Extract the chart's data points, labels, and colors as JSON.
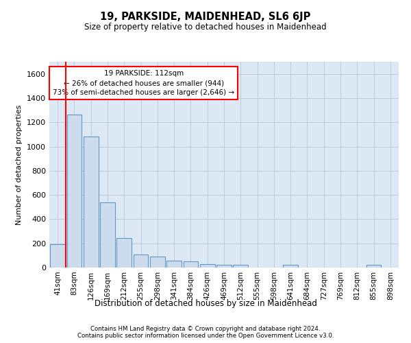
{
  "title": "19, PARKSIDE, MAIDENHEAD, SL6 6JP",
  "subtitle": "Size of property relative to detached houses in Maidenhead",
  "xlabel": "Distribution of detached houses by size in Maidenhead",
  "ylabel": "Number of detached properties",
  "footer_line1": "Contains HM Land Registry data © Crown copyright and database right 2024.",
  "footer_line2": "Contains public sector information licensed under the Open Government Licence v3.0.",
  "annotation_line1": "19 PARKSIDE: 112sqm",
  "annotation_line2": "← 26% of detached houses are smaller (944)",
  "annotation_line3": "73% of semi-detached houses are larger (2,646) →",
  "bar_labels": [
    "41sqm",
    "83sqm",
    "126sqm",
    "169sqm",
    "212sqm",
    "255sqm",
    "298sqm",
    "341sqm",
    "384sqm",
    "426sqm",
    "469sqm",
    "512sqm",
    "555sqm",
    "598sqm",
    "641sqm",
    "684sqm",
    "727sqm",
    "769sqm",
    "812sqm",
    "855sqm",
    "898sqm"
  ],
  "bar_values": [
    190,
    1265,
    1080,
    540,
    245,
    110,
    90,
    55,
    50,
    30,
    25,
    20,
    0,
    0,
    20,
    0,
    0,
    0,
    0,
    20,
    0
  ],
  "bar_color": "#ccdcec",
  "bar_edge_color": "#6098c8",
  "marker_color": "red",
  "ylim": [
    0,
    1700
  ],
  "yticks": [
    0,
    200,
    400,
    600,
    800,
    1000,
    1200,
    1400,
    1600
  ],
  "grid_color": "#b8c8d8",
  "background_color": "#dce8f4",
  "annotation_box_facecolor": "white",
  "annotation_box_edgecolor": "red",
  "red_line_x": 0.5
}
